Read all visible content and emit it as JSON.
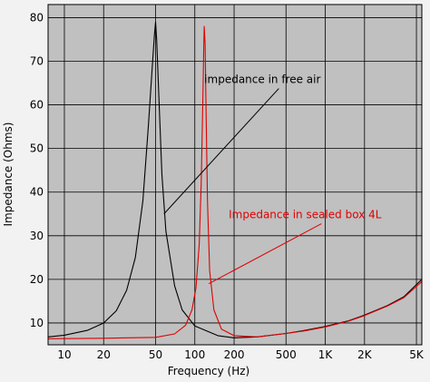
{
  "chart_data": {
    "type": "line",
    "title": "",
    "xlabel": "Frequency (Hz)",
    "ylabel": "Impedance (Ohms)",
    "x_scale": "log",
    "xlim": [
      7.5,
      5500
    ],
    "ylim": [
      5,
      83
    ],
    "grid": true,
    "x_ticks": [
      {
        "value": 10,
        "label": "10"
      },
      {
        "value": 20,
        "label": "20"
      },
      {
        "value": 50,
        "label": "50"
      },
      {
        "value": 100,
        "label": "100"
      },
      {
        "value": 200,
        "label": "200"
      },
      {
        "value": 500,
        "label": "500"
      },
      {
        "value": 1000,
        "label": "1K"
      },
      {
        "value": 2000,
        "label": "2K"
      },
      {
        "value": 5000,
        "label": "5K"
      }
    ],
    "y_ticks": [
      {
        "value": 10,
        "label": "10"
      },
      {
        "value": 20,
        "label": "20"
      },
      {
        "value": 30,
        "label": "30"
      },
      {
        "value": 40,
        "label": "40"
      },
      {
        "value": 50,
        "label": "50"
      },
      {
        "value": 60,
        "label": "60"
      },
      {
        "value": 70,
        "label": "70"
      },
      {
        "value": 80,
        "label": "80"
      }
    ],
    "series": [
      {
        "name": "impedance in free air",
        "color": "#000000",
        "x": [
          7.5,
          10,
          15,
          20,
          25,
          30,
          35,
          40,
          44,
          47,
          49,
          50,
          51,
          53,
          56,
          60,
          70,
          80,
          100,
          150,
          200,
          300,
          500,
          700,
          1000,
          1500,
          2000,
          3000,
          4000,
          5500
        ],
        "y": [
          6.8,
          7.2,
          8.3,
          10.0,
          12.8,
          17.5,
          25.0,
          38.0,
          55.0,
          68.0,
          76.0,
          79.0,
          75.0,
          62.0,
          44.0,
          31.0,
          18.5,
          13.0,
          9.3,
          7.1,
          6.6,
          6.8,
          7.6,
          8.3,
          9.2,
          10.5,
          11.8,
          14.0,
          16.0,
          20.0
        ]
      },
      {
        "name": "Impedance in sealed box 4L",
        "color": "#e00000",
        "x": [
          7.5,
          20,
          50,
          70,
          85,
          95,
          102,
          108,
          112,
          115,
          117,
          118,
          120,
          122,
          125,
          130,
          140,
          160,
          200,
          300,
          500,
          700,
          1000,
          1500,
          2000,
          3000,
          4000,
          5500
        ],
        "y": [
          6.4,
          6.5,
          6.7,
          7.5,
          9.5,
          13.0,
          18.0,
          28.0,
          42.0,
          60.0,
          73.0,
          78.0,
          74.0,
          58.0,
          38.0,
          22.0,
          13.0,
          8.6,
          7.1,
          6.8,
          7.6,
          8.2,
          9.1,
          10.4,
          11.7,
          13.9,
          15.8,
          19.5
        ]
      }
    ],
    "annotations": [
      {
        "text": "impedance in free air",
        "color": "#000000",
        "x": 330,
        "y": 65,
        "arrow_to": {
          "x": 58,
          "y": 35
        }
      },
      {
        "text": "Impedance in sealed box 4L",
        "color": "#e00000",
        "x": 700,
        "y": 34,
        "arrow_to": {
          "x": 128,
          "y": 19
        }
      }
    ]
  }
}
